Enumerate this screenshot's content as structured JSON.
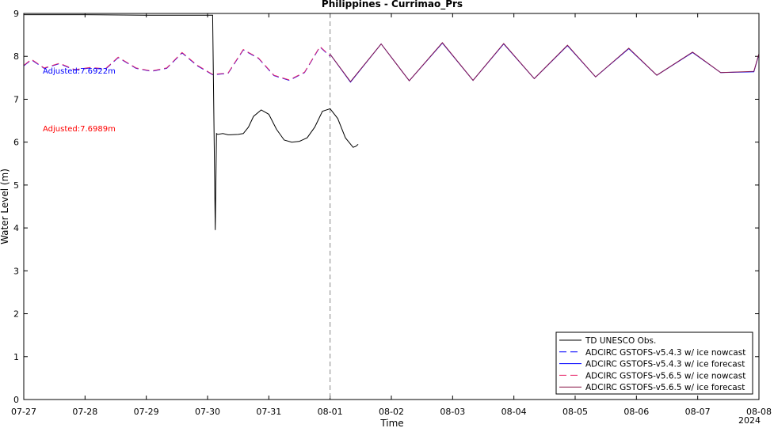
{
  "chart_data": {
    "type": "line",
    "title": "Philippines - Currimao_Prs",
    "xlabel": "Time",
    "ylabel": "Water Level (m)",
    "year_label": "2024",
    "xlim": [
      "07-27 00:00",
      "08-08 00:00"
    ],
    "ylim": [
      0,
      9
    ],
    "x_ticks": [
      "07-27",
      "07-28",
      "07-29",
      "07-30",
      "07-31",
      "08-01",
      "08-02",
      "08-03",
      "08-04",
      "08-05",
      "08-06",
      "08-07",
      "08-08"
    ],
    "y_ticks": [
      0,
      1,
      2,
      3,
      4,
      5,
      6,
      7,
      8,
      9
    ],
    "grid": false,
    "legend_position": "bottom-right",
    "forecast_start": "08-01 00:00",
    "annotations": [
      {
        "text": "Adjusted:7.6922m",
        "color": "#0000ff"
      },
      {
        "text": "Adjusted:7.6989m",
        "color": "#ff0000"
      }
    ],
    "series": [
      {
        "name": "TD UNESCO Obs.",
        "color": "#000000",
        "dash": "solid",
        "x": [
          "07-27 00:00",
          "07-28 00:00",
          "07-29 00:00",
          "07-30 00:00",
          "07-30 02:00",
          "07-30 03:00",
          "07-30 03:30",
          "07-30 04:00",
          "07-30 06:00",
          "07-30 08:00",
          "07-30 09:00",
          "07-30 12:00",
          "07-30 14:00",
          "07-30 16:00",
          "07-30 18:00",
          "07-30 21:00",
          "07-31 00:00",
          "07-31 03:00",
          "07-31 06:00",
          "07-31 09:00",
          "07-31 12:00",
          "07-31 15:00",
          "07-31 18:00",
          "07-31 21:00",
          "08-01 00:00",
          "08-01 03:00",
          "08-01 06:00",
          "08-01 09:00",
          "08-01 10:00",
          "08-01 11:00"
        ],
        "y": [
          8.97,
          8.97,
          8.96,
          8.96,
          8.96,
          3.95,
          6.2,
          6.18,
          6.2,
          6.17,
          6.17,
          6.18,
          6.2,
          6.35,
          6.6,
          6.75,
          6.65,
          6.3,
          6.05,
          6.0,
          6.02,
          6.1,
          6.35,
          6.72,
          6.78,
          6.55,
          6.1,
          5.88,
          5.9,
          5.95
        ]
      },
      {
        "name": "ADCIRC GSTOFS-v5.4.3 w/ ice nowcast",
        "color": "#0000ff",
        "dash": "dashed",
        "x": [
          "07-27 00:00",
          "07-27 03:00",
          "07-27 08:00",
          "07-27 14:00",
          "07-27 20:00",
          "07-28 02:00",
          "07-28 08:00",
          "07-28 13:00",
          "07-28 20:00",
          "07-29 02:00",
          "07-29 08:00",
          "07-29 14:00",
          "07-29 20:00",
          "07-30 02:00",
          "07-30 08:00",
          "07-30 14:00",
          "07-30 20:00",
          "07-31 02:00",
          "07-31 08:00",
          "07-31 14:00",
          "07-31 20:00",
          "08-01 00:00"
        ],
        "y": [
          7.78,
          7.92,
          7.72,
          7.83,
          7.68,
          7.73,
          7.7,
          7.97,
          7.72,
          7.65,
          7.72,
          8.08,
          7.78,
          7.57,
          7.6,
          8.15,
          7.95,
          7.55,
          7.44,
          7.62,
          8.22,
          8.0
        ]
      },
      {
        "name": "ADCIRC GSTOFS-v5.4.3 w/ ice forecast",
        "color": "#0000ff",
        "dash": "solid",
        "x": [
          "08-01 00:00",
          "08-01 08:00",
          "08-01 20:00",
          "08-02 07:00",
          "08-02 20:00",
          "08-03 08:00",
          "08-03 20:00",
          "08-04 08:00",
          "08-04 21:00",
          "08-05 08:00",
          "08-05 21:00",
          "08-06 08:00",
          "08-06 22:00",
          "08-07 09:00",
          "08-07 22:00",
          "08-08 00:00"
        ],
        "y": [
          8.05,
          7.4,
          8.29,
          7.43,
          8.31,
          7.44,
          8.29,
          7.48,
          8.25,
          7.52,
          8.18,
          7.56,
          8.09,
          7.62,
          7.64,
          8.05
        ]
      },
      {
        "name": "ADCIRC GSTOFS-v5.6.5 w/ ice nowcast",
        "color": "#e8296b",
        "dash": "dashed",
        "x": [
          "07-27 00:00",
          "07-27 03:00",
          "07-27 08:00",
          "07-27 14:00",
          "07-27 20:00",
          "07-28 02:00",
          "07-28 08:00",
          "07-28 13:00",
          "07-28 20:00",
          "07-29 02:00",
          "07-29 08:00",
          "07-29 14:00",
          "07-29 20:00",
          "07-30 02:00",
          "07-30 08:00",
          "07-30 14:00",
          "07-30 20:00",
          "07-31 02:00",
          "07-31 08:00",
          "07-31 14:00",
          "07-31 20:00",
          "08-01 00:00"
        ],
        "y": [
          7.79,
          7.93,
          7.73,
          7.84,
          7.69,
          7.74,
          7.71,
          7.98,
          7.73,
          7.66,
          7.73,
          8.09,
          7.79,
          7.58,
          7.61,
          8.16,
          7.96,
          7.56,
          7.45,
          7.63,
          8.23,
          8.01
        ]
      },
      {
        "name": "ADCIRC GSTOFS-v5.6.5 w/ ice forecast",
        "color": "#8b1a4a",
        "dash": "solid",
        "x": [
          "08-01 00:00",
          "08-01 08:00",
          "08-01 20:00",
          "08-02 07:00",
          "08-02 20:00",
          "08-03 08:00",
          "08-03 20:00",
          "08-04 08:00",
          "08-04 21:00",
          "08-05 08:00",
          "08-05 21:00",
          "08-06 08:00",
          "08-06 22:00",
          "08-07 09:00",
          "08-07 22:00",
          "08-08 00:00"
        ],
        "y": [
          8.05,
          7.41,
          8.29,
          7.43,
          8.32,
          7.44,
          8.3,
          7.48,
          8.26,
          7.52,
          8.19,
          7.56,
          8.1,
          7.62,
          7.65,
          8.06
        ]
      }
    ]
  }
}
